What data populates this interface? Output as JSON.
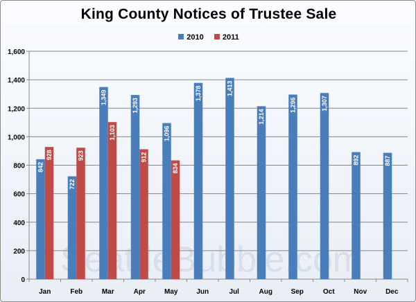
{
  "title": "King County Notices of Trustee Sale",
  "watermark": "SeattleBubble.com",
  "colors": {
    "s2010": "#4a7ebb",
    "s2011": "#be4b48"
  },
  "chart_data": {
    "type": "bar",
    "title": "King County Notices of Trustee Sale",
    "categories": [
      "Jan",
      "Feb",
      "Mar",
      "Apr",
      "May",
      "Jun",
      "Jul",
      "Aug",
      "Sep",
      "Oct",
      "Nov",
      "Dec"
    ],
    "series": [
      {
        "name": "2010",
        "values": [
          842,
          722,
          1349,
          1293,
          1096,
          1378,
          1413,
          1214,
          1296,
          1307,
          892,
          887
        ]
      },
      {
        "name": "2011",
        "values": [
          928,
          923,
          1103,
          912,
          834,
          null,
          null,
          null,
          null,
          null,
          null,
          null
        ]
      }
    ],
    "ylim": [
      0,
      1600
    ],
    "yticks": [
      "0",
      "200",
      "400",
      "600",
      "800",
      "1,000",
      "1,200",
      "1,400",
      "1,600"
    ],
    "value_labels": {
      "2010": [
        "842",
        "722",
        "1,349",
        "1,293",
        "1,096",
        "1,378",
        "1,413",
        "1,214",
        "1,296",
        "1,307",
        "892",
        "887"
      ],
      "2011": [
        "928",
        "923",
        "1,103",
        "912",
        "834",
        "",
        "",
        "",
        "",
        "",
        "",
        ""
      ]
    },
    "grid": true,
    "legend": "top-center"
  }
}
